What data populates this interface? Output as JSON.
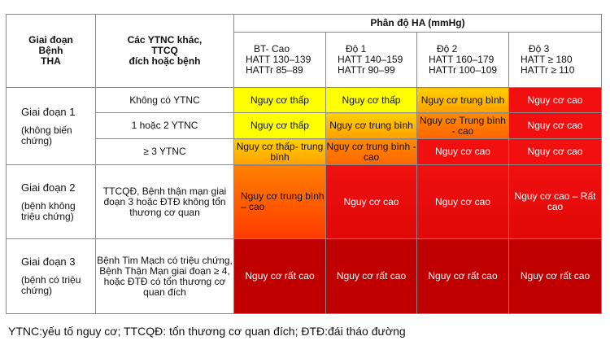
{
  "header": {
    "stage_col": [
      "Giai đoạn",
      "Bệnh",
      "THA"
    ],
    "factor_col": [
      "Các YTNC khác,",
      "TTCQ",
      "đích hoặc bệnh"
    ],
    "bp_title": "Phân độ HA (mmHg)",
    "degrees": [
      {
        "name": "BT- Cao",
        "sys": "HATT 130–139",
        "dia": "HATTr 85–89"
      },
      {
        "name": "Độ 1",
        "sys": "HATT 140–159",
        "dia": "HATTr 90–99"
      },
      {
        "name": "Độ 2",
        "sys": "HATT 160–179",
        "dia": "HATTr 100–109"
      },
      {
        "name": "Độ  3",
        "sys": "HATT ≥ 180",
        "dia": "HATTr ≥ 110"
      }
    ]
  },
  "stages": [
    {
      "name": "Giai đoạn 1",
      "sub": "(không biến chứng)"
    },
    {
      "name": "Giai đoạn 2",
      "sub": "(bệnh không triệu chứng)"
    },
    {
      "name": "Giai đoạn 3",
      "sub": "(bệnh có triệu chứng)"
    }
  ],
  "rows": [
    {
      "factor": "Không có YTNC",
      "cells": [
        "Nguy  cơ thấp",
        "Nguy  cơ thấp",
        "Nguy cơ trung bình",
        "Nguy cơ cao"
      ]
    },
    {
      "factor": "1 hoặc 2 YTNC",
      "cells": [
        "Nguy cơ thấp",
        "Nguy cơ trung bình",
        "Nguy cơ Trung bình - cao",
        "Nguy cơ cao"
      ]
    },
    {
      "factor": "≥ 3 YTNC",
      "cells": [
        "Nguy cơ thấp- trung bình",
        "Nguy cơ trung bình -cao",
        "Nguy cơ cao",
        "Nguy cơ cao"
      ]
    },
    {
      "factor": "TTCQĐ, Bệnh thận mạn giai đoạn 3 hoặc ĐTĐ không tổn thương cơ quan",
      "cells": [
        "Nguy cơ trung bình – cao",
        "Nguy cơ cao",
        "Nguy cơ cao",
        "Nguy cơ cao – Rất cao"
      ]
    },
    {
      "factor": "Bệnh Tim Mạch có triệu chứng, Bệnh Thận Mạn giai đoạn ≥ 4, hoặc ĐTĐ có tổn  thương cơ quan đích",
      "cells": [
        "Nguy cơ rất cao",
        "Nguy cơ rất cao",
        "Nguy cơ rất cao",
        "Nguy cơ rất cao"
      ]
    }
  ],
  "footnote": "YTNC:yếu tố nguy cơ; TTCQĐ: tổn thương cơ quan đích; ĐTĐ:đái tháo đường",
  "colors": {
    "low": "#ffff00",
    "low_moderate": "#ffc000",
    "moderate_high": "#ff6a00",
    "high": "#f20f0f",
    "very_high": "#c00000"
  }
}
